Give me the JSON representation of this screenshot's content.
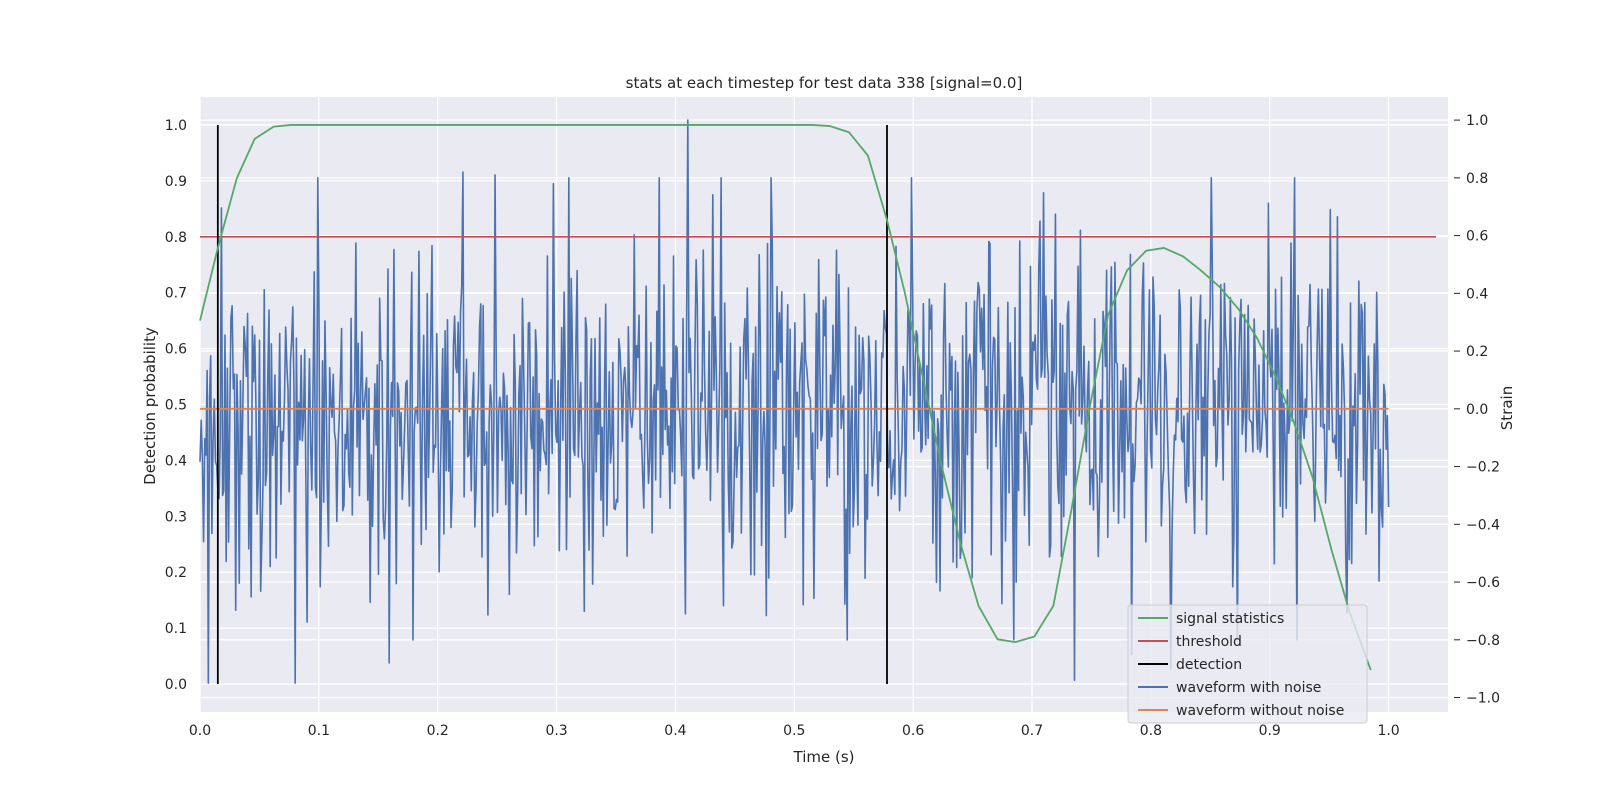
{
  "chart_data": {
    "type": "line",
    "title": "stats at each timestep for test data 338 [signal=0.0]",
    "xlabel": "Time (s)",
    "ylabel_left": "Detection probability",
    "ylabel_right": "Strain",
    "xlim": [
      0.0,
      1.05
    ],
    "ylim_left": [
      -0.05,
      1.05
    ],
    "ylim_right": [
      -1.05,
      1.08
    ],
    "x_ticks": [
      "0.0",
      "0.1",
      "0.2",
      "0.3",
      "0.4",
      "0.5",
      "0.6",
      "0.7",
      "0.8",
      "0.9",
      "1.0"
    ],
    "y_ticks_left": [
      "0.0",
      "0.1",
      "0.2",
      "0.3",
      "0.4",
      "0.5",
      "0.6",
      "0.7",
      "0.8",
      "0.9",
      "1.0"
    ],
    "y_ticks_right": [
      "−1.0",
      "−0.8",
      "−0.6",
      "−0.4",
      "−0.2",
      "0.0",
      "0.2",
      "0.4",
      "0.6",
      "0.8",
      "1.0"
    ],
    "grid": true,
    "legend_position": "lower-right",
    "series": [
      {
        "name": "signal statistics",
        "color": "#55a868",
        "axis": "left",
        "x": [
          0.0,
          0.015,
          0.031,
          0.046,
          0.062,
          0.077,
          0.1,
          0.2,
          0.3,
          0.4,
          0.5,
          0.515,
          0.53,
          0.546,
          0.562,
          0.578,
          0.593,
          0.609,
          0.624,
          0.64,
          0.655,
          0.671,
          0.686,
          0.702,
          0.718,
          0.733,
          0.749,
          0.764,
          0.78,
          0.796,
          0.811,
          0.827,
          0.842,
          0.858,
          0.874,
          0.889,
          0.905,
          0.92,
          0.936,
          0.952,
          0.967,
          0.985
        ],
        "y": [
          0.65,
          0.78,
          0.905,
          0.975,
          0.997,
          1.0,
          1.0,
          1.0,
          1.0,
          1.0,
          1.0,
          1.0,
          0.998,
          0.987,
          0.945,
          0.83,
          0.7,
          0.54,
          0.39,
          0.25,
          0.14,
          0.08,
          0.075,
          0.085,
          0.14,
          0.31,
          0.5,
          0.66,
          0.74,
          0.775,
          0.78,
          0.765,
          0.74,
          0.71,
          0.67,
          0.62,
          0.55,
          0.47,
          0.37,
          0.24,
          0.13,
          0.025
        ]
      },
      {
        "name": "threshold",
        "color": "#c44e52",
        "axis": "left",
        "x": [
          0.0,
          1.04
        ],
        "y": [
          0.8,
          0.8
        ]
      },
      {
        "name": "detection",
        "color": "#000000",
        "axis": "left",
        "segments": [
          {
            "x": 0.015,
            "y": [
              0.0,
              1.0
            ]
          },
          {
            "x": 0.578,
            "y": [
              0.0,
              1.0
            ]
          }
        ]
      },
      {
        "name": "waveform with noise",
        "color": "#4c72b0",
        "axis": "right",
        "x_range": [
          0.0,
          1.0
        ],
        "sample_count": 1000,
        "seed": 338,
        "std": 0.28,
        "y_range": [
          -0.95,
          1.0
        ],
        "spikes": [
          {
            "x": 0.007,
            "y": -0.95
          },
          {
            "x": 0.08,
            "y": -0.95
          },
          {
            "x": 0.159,
            "y": -0.88
          },
          {
            "x": 0.221,
            "y": 0.82
          },
          {
            "x": 0.248,
            "y": 0.81
          },
          {
            "x": 0.297,
            "y": 0.78
          },
          {
            "x": 0.41,
            "y": 1.0
          },
          {
            "x": 0.408,
            "y": -0.71
          },
          {
            "x": 0.545,
            "y": -0.8
          },
          {
            "x": 0.736,
            "y": -0.94
          },
          {
            "x": 0.784,
            "y": -0.85
          },
          {
            "x": 0.817,
            "y": -0.9
          },
          {
            "x": 0.951,
            "y": 0.69
          }
        ]
      },
      {
        "name": "waveform without noise",
        "color": "#dd8452",
        "axis": "right",
        "x": [
          0.0,
          1.0
        ],
        "y": [
          0.0,
          0.0
        ]
      }
    ]
  }
}
